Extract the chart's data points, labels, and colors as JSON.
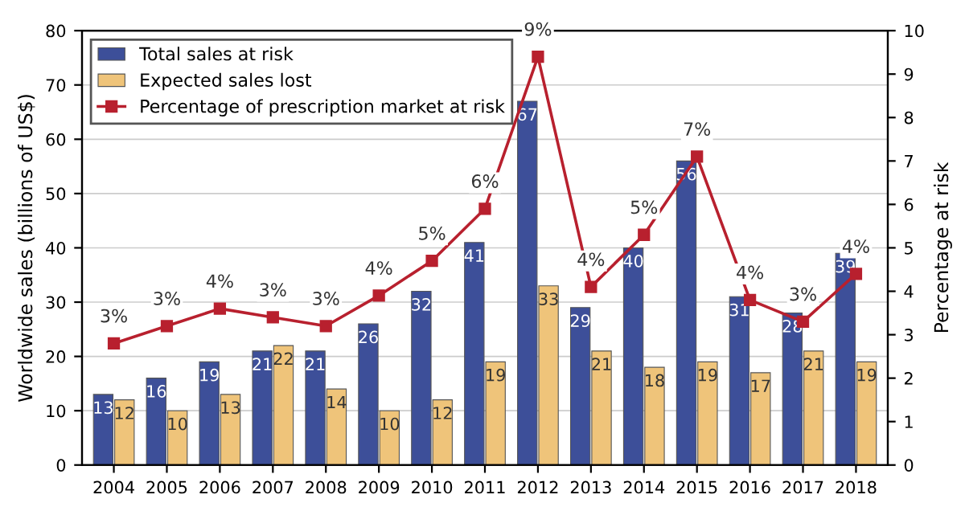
{
  "chart_data": {
    "type": "bar",
    "categories": [
      "2004",
      "2005",
      "2006",
      "2007",
      "2008",
      "2009",
      "2010",
      "2011",
      "2012",
      "2013",
      "2014",
      "2015",
      "2016",
      "2017",
      "2018"
    ],
    "ylabel": "Worldwide sales (billions of US$)",
    "y2label": "Percentage at risk",
    "ylim": [
      0,
      80
    ],
    "yticks": [
      0,
      10,
      20,
      30,
      40,
      50,
      60,
      70,
      80
    ],
    "y2lim": [
      0,
      10
    ],
    "y2ticks": [
      0,
      1,
      2,
      3,
      4,
      5,
      6,
      7,
      8,
      9,
      10
    ],
    "grid": "y",
    "legend": "top left",
    "marker": "square",
    "series": [
      {
        "name": "Total sales at risk",
        "color": "#3d4f99",
        "values": [
          13,
          16,
          19,
          21,
          21,
          26,
          32,
          41,
          67,
          29,
          40,
          56,
          31,
          28,
          39
        ],
        "value_labels": [
          "13",
          "16",
          "19",
          "21",
          "21",
          "26",
          "32",
          "41",
          "67",
          "29",
          "40",
          "56",
          "31",
          "28",
          "39"
        ]
      },
      {
        "name": "Expected sales lost",
        "color": "#efc47a",
        "values": [
          12,
          10,
          13,
          22,
          14,
          10,
          12,
          19,
          33,
          21,
          18,
          19,
          17,
          21,
          19
        ],
        "value_labels": [
          "12",
          "10",
          "13",
          "22",
          "14",
          "10",
          "12",
          "19",
          "33",
          "21",
          "18",
          "19",
          "17",
          "21",
          "19"
        ]
      },
      {
        "name": "Percentage of prescription market at risk",
        "type": "line",
        "axis": "y2",
        "color": "#b8202e",
        "values": [
          2.8,
          3.2,
          3.6,
          3.4,
          3.2,
          3.9,
          4.7,
          5.9,
          9.4,
          4.1,
          5.3,
          7.1,
          3.8,
          3.3,
          4.4
        ],
        "value_labels": [
          "3%",
          "3%",
          "4%",
          "3%",
          "3%",
          "4%",
          "5%",
          "6%",
          "9%",
          "4%",
          "5%",
          "7%",
          "4%",
          "3%",
          "4%"
        ]
      }
    ]
  }
}
